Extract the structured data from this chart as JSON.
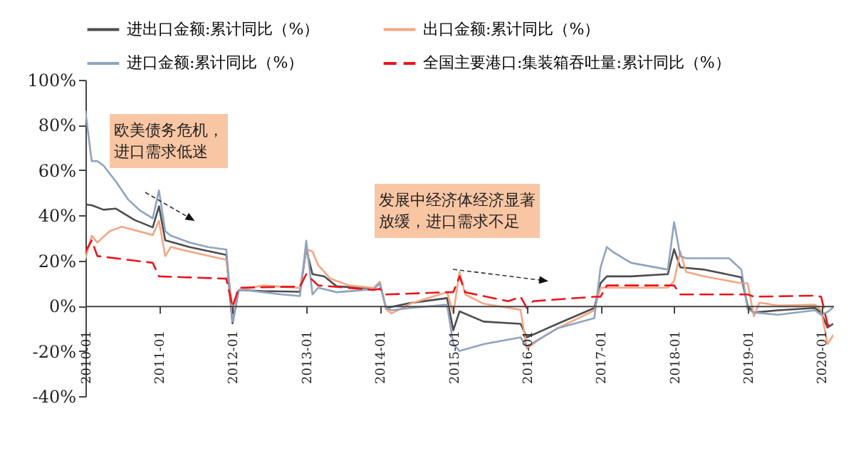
{
  "chart_data": {
    "type": "line",
    "legend": "top",
    "ylim": [
      -40,
      100
    ],
    "yticks": [
      {
        "value": -40,
        "label": "-40%"
      },
      {
        "value": -20,
        "label": "-20%"
      },
      {
        "value": 0,
        "label": "0%"
      },
      {
        "value": 20,
        "label": "20%"
      },
      {
        "value": 40,
        "label": "40%"
      },
      {
        "value": 60,
        "label": "60%"
      },
      {
        "value": 80,
        "label": "80%"
      },
      {
        "value": 100,
        "label": "100%"
      }
    ],
    "xlim": [
      "2010-01",
      "2020-03"
    ],
    "xticks": [
      "2010-01",
      "2011-01",
      "2012-01",
      "2013-01",
      "2014-01",
      "2015-01",
      "2016-01",
      "2017-01",
      "2018-01",
      "2019-01",
      "2020-01"
    ],
    "annotations": [
      "欧美债务危机，进口需求低迷",
      "发展中经济体经济显著放缓，进口需求不足"
    ],
    "series": [
      {
        "name": "进出口金额:累计同比（%）",
        "color": "#4d4d4d",
        "x": [
          "2010-01",
          "2010-02",
          "2010-04",
          "2010-06",
          "2010-09",
          "2010-12",
          "2011-01",
          "2011-02",
          "2011-06",
          "2011-12",
          "2012-01",
          "2012-02",
          "2012-06",
          "2012-12",
          "2013-01",
          "2013-02",
          "2013-04",
          "2013-06",
          "2013-12",
          "2014-01",
          "2014-02",
          "2014-06",
          "2014-12",
          "2015-01",
          "2015-02",
          "2015-06",
          "2015-12",
          "2016-01",
          "2016-06",
          "2016-12",
          "2017-01",
          "2017-02",
          "2017-06",
          "2017-12",
          "2018-01",
          "2018-02",
          "2018-06",
          "2018-12",
          "2019-01",
          "2019-02",
          "2019-06",
          "2019-12",
          "2020-01",
          "2020-02",
          "2020-03"
        ],
        "values": [
          44.8,
          44.5,
          42.5,
          43,
          38,
          34.7,
          44,
          29,
          26,
          22.5,
          -7.8,
          7,
          6.5,
          6.2,
          25,
          14,
          13,
          8.6,
          7.6,
          10,
          -1,
          1.2,
          3.4,
          -10.8,
          -2.5,
          -7,
          -8,
          -14,
          -8,
          -1,
          10,
          13,
          13,
          14,
          25,
          17,
          16,
          12.6,
          0,
          -3,
          -2,
          -1,
          -3,
          -9.6,
          -8
        ]
      },
      {
        "name": "出口金额:累计同比（%）",
        "color": "#f4a582",
        "x": [
          "2010-01",
          "2010-02",
          "2010-03",
          "2010-05",
          "2010-07",
          "2010-12",
          "2011-01",
          "2011-02",
          "2011-03",
          "2011-06",
          "2011-12",
          "2012-01",
          "2012-02",
          "2012-06",
          "2012-12",
          "2013-01",
          "2013-02",
          "2013-03",
          "2013-05",
          "2013-08",
          "2013-12",
          "2014-01",
          "2014-02",
          "2014-03",
          "2014-06",
          "2014-12",
          "2015-01",
          "2015-02",
          "2015-03",
          "2015-06",
          "2015-12",
          "2016-01",
          "2016-03",
          "2016-06",
          "2016-12",
          "2017-01",
          "2017-03",
          "2017-12",
          "2018-01",
          "2018-02",
          "2018-03",
          "2018-06",
          "2018-12",
          "2019-01",
          "2019-02",
          "2019-03",
          "2019-06",
          "2019-12",
          "2020-01",
          "2020-02",
          "2020-03"
        ],
        "values": [
          21,
          31,
          28,
          33,
          35,
          31.3,
          37.6,
          22,
          26,
          24,
          20.3,
          -0.5,
          7,
          9,
          7.9,
          25,
          24,
          18,
          12,
          9,
          7.9,
          10.6,
          -1.6,
          -3.4,
          0.9,
          6,
          -3.3,
          15,
          5,
          0.9,
          -1.8,
          -19,
          -15,
          -10,
          -2,
          8,
          8,
          8,
          11,
          24,
          15,
          13,
          10,
          10,
          -4.6,
          1.4,
          0.1,
          0.5,
          -2,
          -17,
          -13
        ]
      },
      {
        "name": "进口金额:累计同比（%）",
        "color": "#8fa3bf",
        "x": [
          "2010-01",
          "2010-02",
          "2010-03",
          "2010-04",
          "2010-06",
          "2010-08",
          "2010-10",
          "2010-12",
          "2011-01",
          "2011-02",
          "2011-03",
          "2011-06",
          "2011-09",
          "2011-12",
          "2012-01",
          "2012-02",
          "2012-03",
          "2012-06",
          "2012-09",
          "2012-12",
          "2013-01",
          "2013-02",
          "2013-03",
          "2013-06",
          "2013-12",
          "2014-01",
          "2014-02",
          "2014-03",
          "2014-06",
          "2014-12",
          "2015-01",
          "2015-02",
          "2015-06",
          "2015-12",
          "2016-01",
          "2016-06",
          "2016-12",
          "2017-01",
          "2017-02",
          "2017-03",
          "2017-06",
          "2017-12",
          "2018-01",
          "2018-02",
          "2018-03",
          "2018-06",
          "2018-10",
          "2018-12",
          "2019-01",
          "2019-02",
          "2019-06",
          "2019-12",
          "2020-01",
          "2020-02",
          "2020-03"
        ],
        "values": [
          86,
          64,
          64,
          62,
          55,
          47,
          42,
          38.7,
          51,
          33,
          31,
          28,
          26,
          24.9,
          -7,
          7,
          7,
          6,
          5,
          4.3,
          28.8,
          5,
          8,
          6,
          7.3,
          10,
          -1,
          -2,
          -1,
          0.5,
          -17,
          -20,
          -17,
          -14,
          -18,
          -10,
          -5.5,
          17,
          26,
          24,
          19,
          16,
          37,
          22,
          21,
          21,
          21,
          16,
          -1.5,
          -3,
          -4,
          -2,
          -4,
          -2.8,
          -0.7
        ]
      },
      {
        "name": "全国主要港口:集装箱吞吐量:累计同比（%）",
        "color": "#e8161b",
        "line_style": "dashed",
        "x": [
          "2010-01",
          "2010-02",
          "2010-03",
          "2010-12",
          "2011-01",
          "2011-12",
          "2012-01",
          "2012-02",
          "2012-12",
          "2013-01",
          "2013-03",
          "2013-12",
          "2014-01",
          "2014-02",
          "2014-12",
          "2015-01",
          "2015-02",
          "2015-03",
          "2015-10",
          "2015-12",
          "2016-01",
          "2016-02",
          "2016-12",
          "2017-01",
          "2017-02",
          "2017-12",
          "2018-01",
          "2018-02",
          "2018-12",
          "2019-01",
          "2019-02",
          "2019-12",
          "2020-01",
          "2020-02",
          "2020-03"
        ],
        "values": [
          24,
          29,
          22,
          19,
          13,
          12,
          -0.5,
          8,
          8.5,
          14,
          9,
          7,
          7.5,
          5,
          6,
          6,
          13,
          6,
          2,
          4,
          -1,
          2,
          4,
          4,
          9,
          9,
          9,
          5,
          5,
          5,
          4,
          4.5,
          4,
          -8,
          -11
        ]
      }
    ]
  }
}
